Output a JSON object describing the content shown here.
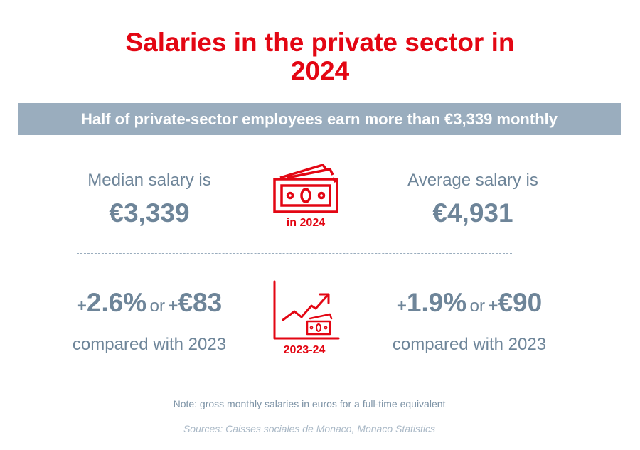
{
  "title": {
    "line1": "Salaries in the private sector in",
    "line2": "2024"
  },
  "banner": "Half of private-sector employees earn more than €3,339 monthly",
  "median": {
    "label": "Median salary is",
    "value": "€3,339",
    "change": {
      "plus1": "+",
      "pct": "2.6%",
      "or": "or",
      "plus2": "+",
      "amount": "€83",
      "compared": "compared with 2023"
    }
  },
  "average": {
    "label": "Average salary is",
    "value": "€4,931",
    "change": {
      "plus1": "+",
      "pct": "1.9%",
      "or": "or",
      "plus2": "+",
      "amount": "€90",
      "compared": "compared with 2023"
    }
  },
  "icons": {
    "money_caption": "in 2024",
    "growth_caption": "2023-24",
    "money_icon": "banknotes-icon",
    "growth_icon": "rising-chart-icon"
  },
  "note": "Note: gross monthly salaries in euros for a full-time equivalent",
  "sources": "Sources: Caisses sociales de Monaco, Monaco Statistics",
  "colors": {
    "accent_red": "#e30613",
    "banner_blue": "#9aadbe",
    "text_blue_gray": "#6e8599"
  }
}
